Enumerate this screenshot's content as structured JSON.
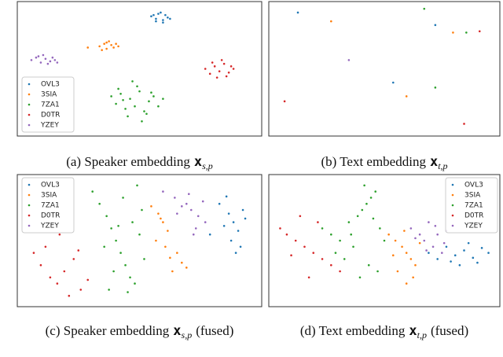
{
  "chart_data": [
    {
      "type": "scatter",
      "legend": "lower left",
      "caption": {
        "prefix": "(a) Speaker embedding",
        "symbol": "x",
        "subscript": "s,p"
      },
      "series": [
        {
          "name": "OVL3",
          "color": "#1f77b4",
          "x": [
            55,
            57,
            58,
            60,
            61,
            62,
            57,
            59,
            63,
            56,
            60
          ],
          "y": [
            92,
            90,
            94,
            89,
            93,
            91,
            88,
            95,
            90,
            93,
            87
          ]
        },
        {
          "name": "3SIA",
          "color": "#ff7f0e",
          "x": [
            33,
            35,
            36,
            38,
            39,
            40,
            34,
            37,
            41,
            36,
            28
          ],
          "y": [
            68,
            70,
            66,
            69,
            67,
            70,
            65,
            72,
            68,
            71,
            67
          ]
        },
        {
          "name": "7ZA1",
          "color": "#2ca02c",
          "x": [
            38,
            40,
            42,
            44,
            46,
            48,
            50,
            52,
            54,
            56,
            58,
            60,
            45,
            49,
            53,
            41,
            51,
            47,
            55,
            43
          ],
          "y": [
            28,
            22,
            30,
            18,
            26,
            20,
            32,
            16,
            24,
            28,
            20,
            26,
            12,
            36,
            14,
            34,
            8,
            40,
            31,
            25
          ]
        },
        {
          "name": "D0TR",
          "color": "#d62728",
          "x": [
            78,
            80,
            82,
            84,
            86,
            88,
            90,
            83,
            85,
            87,
            81,
            89
          ],
          "y": [
            50,
            46,
            52,
            48,
            54,
            47,
            50,
            43,
            57,
            44,
            55,
            52
          ]
        },
        {
          "name": "YZEY",
          "color": "#9467bd",
          "x": [
            4,
            6,
            8,
            10,
            12,
            14,
            7,
            11,
            9,
            13,
            15
          ],
          "y": [
            57,
            59,
            55,
            58,
            56,
            57,
            60,
            54,
            61,
            59,
            55
          ]
        }
      ]
    },
    {
      "type": "scatter",
      "caption": {
        "prefix": "(b) Text embedding",
        "symbol": "x",
        "subscript": "t,p"
      },
      "series": [
        {
          "name": "OVL3",
          "color": "#1f77b4",
          "x": [
            11,
            73,
            54
          ],
          "y": [
            95,
            85,
            39
          ]
        },
        {
          "name": "3SIA",
          "color": "#ff7f0e",
          "x": [
            26,
            81,
            60
          ],
          "y": [
            88,
            79,
            28
          ]
        },
        {
          "name": "7ZA1",
          "color": "#2ca02c",
          "x": [
            68,
            87,
            73
          ],
          "y": [
            98,
            79,
            35
          ]
        },
        {
          "name": "D0TR",
          "color": "#d62728",
          "x": [
            93,
            5,
            86
          ],
          "y": [
            80,
            24,
            6
          ]
        },
        {
          "name": "YZEY",
          "color": "#9467bd",
          "x": [
            34
          ],
          "y": [
            57
          ]
        }
      ]
    },
    {
      "type": "scatter",
      "legend": "upper left",
      "caption": {
        "prefix": "(c) Speaker embedding",
        "symbol": "x",
        "subscript": "s,p",
        "suffix": "(fused)"
      },
      "series": [
        {
          "name": "OVL3",
          "color": "#1f77b4",
          "x": [
            84,
            88,
            90,
            92,
            94,
            86,
            89,
            93,
            95,
            80,
            91,
            87
          ],
          "y": [
            80,
            72,
            65,
            58,
            75,
            62,
            50,
            45,
            68,
            55,
            40,
            86
          ]
        },
        {
          "name": "3SIA",
          "color": "#ff7f0e",
          "x": [
            55,
            58,
            60,
            62,
            57,
            61,
            66,
            68,
            70,
            64,
            59,
            63
          ],
          "y": [
            78,
            72,
            65,
            58,
            50,
            45,
            40,
            32,
            28,
            25,
            68,
            36
          ]
        },
        {
          "name": "7ZA1",
          "color": "#2ca02c",
          "x": [
            30,
            33,
            36,
            38,
            40,
            42,
            44,
            46,
            48,
            50,
            52,
            35,
            39,
            43,
            47,
            51,
            37,
            45,
            49,
            41
          ],
          "y": [
            90,
            80,
            70,
            60,
            50,
            40,
            30,
            20,
            15,
            55,
            35,
            45,
            25,
            85,
            65,
            75,
            10,
            8,
            95,
            62
          ]
        },
        {
          "name": "D0TR",
          "color": "#d62728",
          "x": [
            5,
            8,
            12,
            15,
            18,
            22,
            25,
            28,
            10,
            20,
            24,
            16
          ],
          "y": [
            40,
            30,
            20,
            15,
            25,
            35,
            10,
            18,
            45,
            5,
            42,
            55
          ]
        },
        {
          "name": "YZEY",
          "color": "#9467bd",
          "x": [
            60,
            65,
            70,
            72,
            75,
            78,
            74,
            68,
            71,
            77,
            66,
            73
          ],
          "y": [
            90,
            85,
            80,
            75,
            70,
            65,
            60,
            78,
            88,
            82,
            72,
            55
          ]
        }
      ]
    },
    {
      "type": "scatter",
      "legend": "upper right",
      "caption": {
        "prefix": "(d) Text embedding",
        "symbol": "x",
        "subscript": "t,p",
        "suffix": "(fused)"
      },
      "series": [
        {
          "name": "OVL3",
          "color": "#1f77b4",
          "x": [
            70,
            74,
            78,
            82,
            86,
            90,
            94,
            97,
            80,
            88,
            92,
            84
          ],
          "y": [
            40,
            35,
            45,
            38,
            42,
            36,
            44,
            40,
            33,
            48,
            32,
            30
          ]
        },
        {
          "name": "3SIA",
          "color": "#ff7f0e",
          "x": [
            52,
            55,
            58,
            60,
            62,
            64,
            56,
            60,
            63,
            66,
            54,
            59
          ],
          "y": [
            55,
            50,
            45,
            40,
            35,
            30,
            25,
            15,
            20,
            48,
            38,
            58
          ]
        },
        {
          "name": "7ZA1",
          "color": "#2ca02c",
          "x": [
            22,
            26,
            30,
            34,
            38,
            40,
            42,
            44,
            46,
            48,
            50,
            36,
            32,
            28,
            43,
            47,
            39,
            35,
            45,
            41
          ],
          "y": [
            60,
            55,
            50,
            65,
            70,
            75,
            80,
            85,
            90,
            60,
            50,
            45,
            35,
            40,
            30,
            25,
            20,
            55,
            68,
            95
          ]
        },
        {
          "name": "D0TR",
          "color": "#d62728",
          "x": [
            3,
            6,
            10,
            14,
            18,
            22,
            26,
            30,
            12,
            20,
            8,
            16
          ],
          "y": [
            60,
            55,
            50,
            45,
            40,
            35,
            30,
            25,
            70,
            65,
            38,
            20
          ]
        },
        {
          "name": "YZEY",
          "color": "#9467bd",
          "x": [
            62,
            66,
            68,
            70,
            72,
            74,
            76,
            78,
            69,
            73,
            64,
            77
          ],
          "y": [
            60,
            55,
            50,
            65,
            45,
            55,
            40,
            58,
            42,
            62,
            52,
            48
          ]
        }
      ]
    }
  ]
}
